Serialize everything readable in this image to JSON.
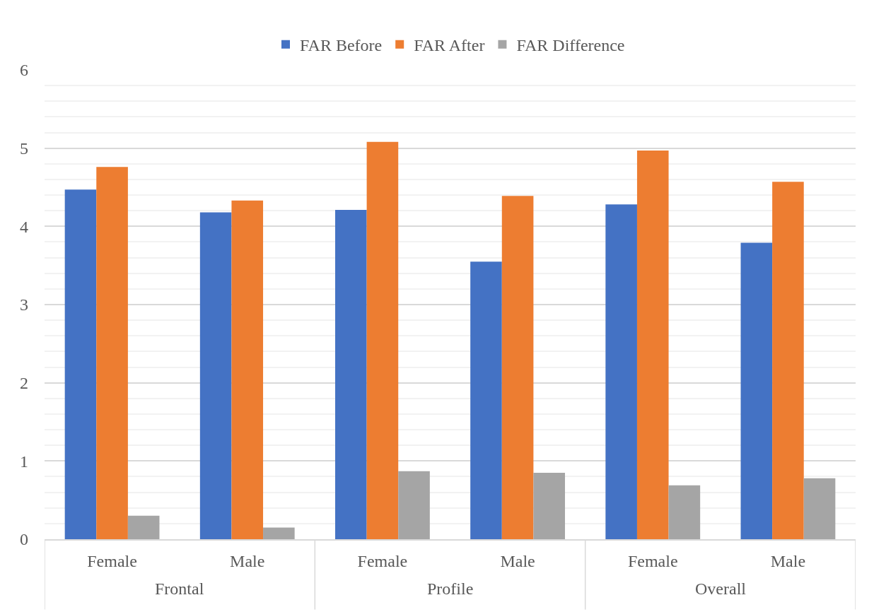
{
  "chart_data": {
    "type": "bar",
    "categories": [
      "Female",
      "Male",
      "Female",
      "Male",
      "Female",
      "Male"
    ],
    "annotations": [
      "Frontal",
      "Profile",
      "Overall"
    ],
    "series": [
      {
        "name": "FAR Before",
        "color": "#4472c4",
        "values": [
          4.47,
          4.18,
          4.21,
          3.55,
          4.28,
          3.79
        ]
      },
      {
        "name": "FAR After",
        "color": "#ed7d31",
        "values": [
          4.76,
          4.33,
          5.08,
          4.39,
          4.97,
          4.57
        ]
      },
      {
        "name": "FAR Difference",
        "color": "#a5a5a5",
        "values": [
          0.3,
          0.15,
          0.87,
          0.85,
          0.69,
          0.78
        ]
      }
    ],
    "ylim": [
      0,
      6
    ],
    "yticks": [
      0,
      1,
      2,
      3,
      4,
      5,
      6
    ],
    "grid": "y",
    "legend": "top"
  }
}
